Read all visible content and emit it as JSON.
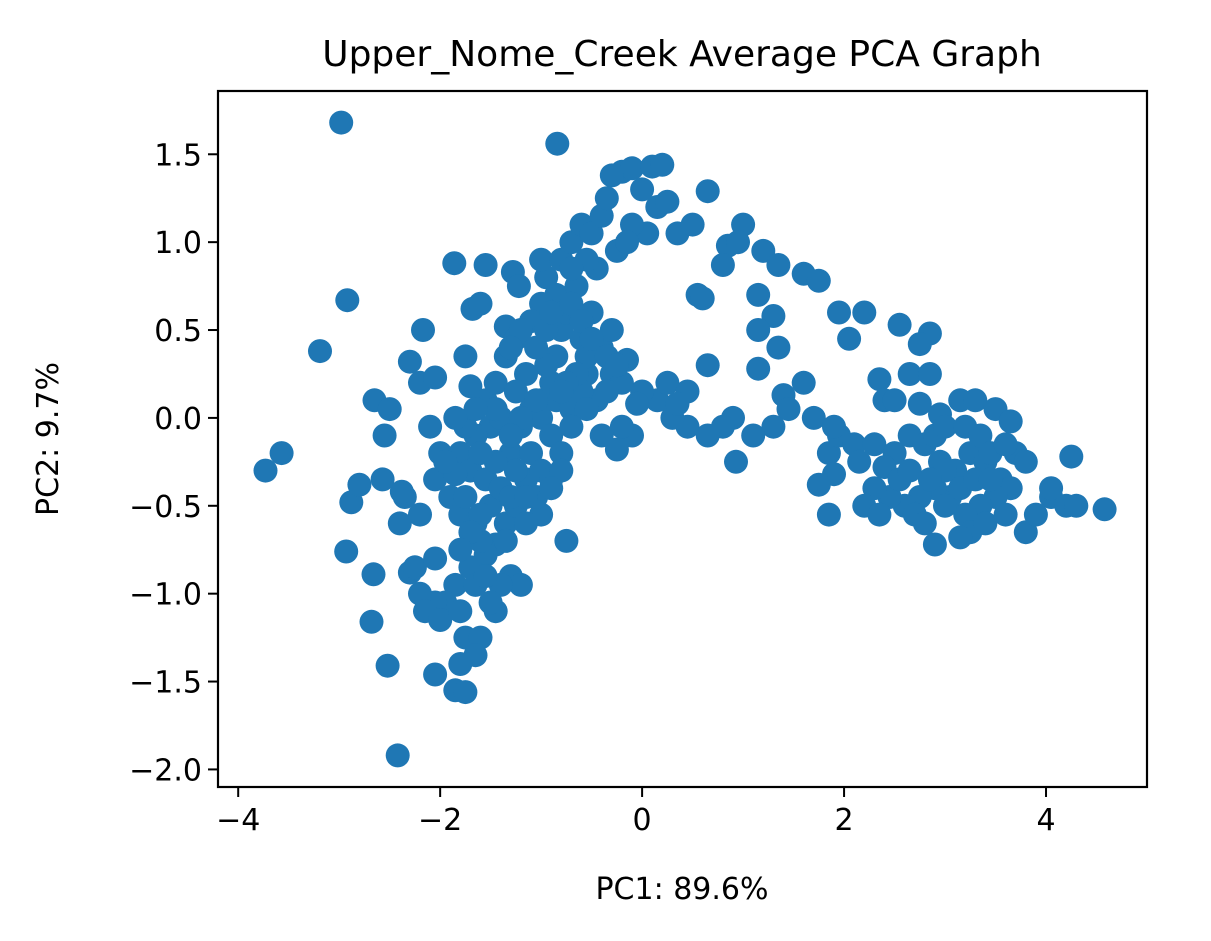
{
  "chart_data": {
    "type": "scatter",
    "title": "Upper_Nome_Creek Average PCA Graph",
    "xlabel": "PC1: 89.6%",
    "ylabel": "PC2: 9.7%",
    "xlim": [
      -4.2,
      5.0
    ],
    "ylim": [
      -2.1,
      1.86
    ],
    "xticks": [
      -4,
      -2,
      0,
      2,
      4
    ],
    "xtick_labels": [
      "−4",
      "−2",
      "0",
      "2",
      "4"
    ],
    "yticks": [
      -2.0,
      -1.5,
      -1.0,
      -0.5,
      0.0,
      0.5,
      1.0,
      1.5
    ],
    "ytick_labels": [
      "−2.0",
      "−1.5",
      "−1.0",
      "−0.5",
      "0.0",
      "0.5",
      "1.0",
      "1.5"
    ],
    "grid": false,
    "legend": "none",
    "marker_color": "#1f77b4",
    "series": [
      {
        "points": [
          [
            -2.98,
            1.68
          ],
          [
            -0.84,
            1.56
          ],
          [
            -2.92,
            0.67
          ],
          [
            -3.19,
            0.38
          ],
          [
            -3.73,
            -0.3
          ],
          [
            -3.57,
            -0.2
          ],
          [
            -1.86,
            0.88
          ],
          [
            -1.55,
            0.87
          ],
          [
            -1.28,
            0.83
          ],
          [
            -1.22,
            0.75
          ],
          [
            -1.68,
            0.62
          ],
          [
            -1.6,
            0.65
          ],
          [
            -1.35,
            0.52
          ],
          [
            -1.25,
            0.45
          ],
          [
            -2.17,
            0.5
          ],
          [
            -2.3,
            0.32
          ],
          [
            -2.2,
            0.2
          ],
          [
            -2.05,
            0.23
          ],
          [
            -2.65,
            0.1
          ],
          [
            -2.5,
            0.05
          ],
          [
            -2.1,
            -0.05
          ],
          [
            -2.55,
            -0.1
          ],
          [
            -2.0,
            -0.2
          ],
          [
            -2.05,
            -0.35
          ],
          [
            -1.75,
            0.35
          ],
          [
            -1.7,
            0.18
          ],
          [
            -1.55,
            0.1
          ],
          [
            -1.45,
            0.2
          ],
          [
            -1.35,
            0.35
          ],
          [
            -1.5,
            -0.05
          ],
          [
            -1.65,
            -0.1
          ],
          [
            -1.8,
            -0.2
          ],
          [
            -1.7,
            -0.3
          ],
          [
            -1.55,
            -0.35
          ],
          [
            -1.9,
            -0.45
          ],
          [
            -1.8,
            -0.55
          ],
          [
            -1.65,
            -0.6
          ],
          [
            -1.5,
            -0.5
          ],
          [
            -1.4,
            -0.4
          ],
          [
            -1.3,
            -0.2
          ],
          [
            -1.2,
            -0.05
          ],
          [
            -1.1,
            0.05
          ],
          [
            -1.0,
            0.1
          ],
          [
            -0.9,
            0.2
          ],
          [
            -0.85,
            0.35
          ],
          [
            -0.8,
            0.5
          ],
          [
            -0.75,
            0.6
          ],
          [
            -0.85,
            0.7
          ],
          [
            -0.95,
            0.8
          ],
          [
            -1.0,
            0.9
          ],
          [
            -0.8,
            0.9
          ],
          [
            -0.7,
            1.0
          ],
          [
            -0.6,
            1.1
          ],
          [
            -0.5,
            1.05
          ],
          [
            -0.4,
            1.15
          ],
          [
            -0.35,
            1.25
          ],
          [
            -0.2,
            1.4
          ],
          [
            -0.1,
            1.42
          ],
          [
            0.1,
            1.43
          ],
          [
            0.2,
            1.44
          ],
          [
            -0.3,
            1.38
          ],
          [
            0.0,
            1.3
          ],
          [
            0.15,
            1.2
          ],
          [
            0.25,
            1.23
          ],
          [
            0.35,
            1.05
          ],
          [
            0.05,
            1.05
          ],
          [
            -0.1,
            1.1
          ],
          [
            0.65,
            1.29
          ],
          [
            0.85,
            0.98
          ],
          [
            1.0,
            1.1
          ],
          [
            1.2,
            0.95
          ],
          [
            0.95,
            1.0
          ],
          [
            0.5,
            1.1
          ],
          [
            0.8,
            0.87
          ],
          [
            1.35,
            0.87
          ],
          [
            1.6,
            0.82
          ],
          [
            1.75,
            0.78
          ],
          [
            1.15,
            0.7
          ],
          [
            1.3,
            0.58
          ],
          [
            1.15,
            0.5
          ],
          [
            1.35,
            0.4
          ],
          [
            1.15,
            0.28
          ],
          [
            0.55,
            0.7
          ],
          [
            0.6,
            0.68
          ],
          [
            0.65,
            0.3
          ],
          [
            1.95,
            0.6
          ],
          [
            2.05,
            0.45
          ],
          [
            2.2,
            0.6
          ],
          [
            2.55,
            0.53
          ],
          [
            2.85,
            0.48
          ],
          [
            2.75,
            0.42
          ],
          [
            2.65,
            0.25
          ],
          [
            2.85,
            0.25
          ],
          [
            2.35,
            0.22
          ],
          [
            2.4,
            0.1
          ],
          [
            2.5,
            0.1
          ],
          [
            2.75,
            0.08
          ],
          [
            2.95,
            0.02
          ],
          [
            3.15,
            0.1
          ],
          [
            3.3,
            0.1
          ],
          [
            3.5,
            0.05
          ],
          [
            3.65,
            -0.02
          ],
          [
            1.6,
            0.2
          ],
          [
            1.4,
            0.13
          ],
          [
            1.45,
            0.05
          ],
          [
            1.7,
            0.0
          ],
          [
            1.3,
            -0.05
          ],
          [
            1.1,
            -0.1
          ],
          [
            0.9,
            0.0
          ],
          [
            0.8,
            -0.05
          ],
          [
            0.65,
            -0.1
          ],
          [
            0.45,
            -0.05
          ],
          [
            0.3,
            0.0
          ],
          [
            0.15,
            0.1
          ],
          [
            0.0,
            0.15
          ],
          [
            0.25,
            0.2
          ],
          [
            0.45,
            0.15
          ],
          [
            0.35,
            0.08
          ],
          [
            -0.1,
            -0.1
          ],
          [
            -0.2,
            -0.05
          ],
          [
            -0.25,
            -0.18
          ],
          [
            -0.4,
            -0.1
          ],
          [
            -0.45,
            0.1
          ],
          [
            -0.3,
            0.25
          ],
          [
            -0.15,
            0.33
          ],
          [
            -0.2,
            0.2
          ],
          [
            -0.05,
            0.08
          ],
          [
            -0.55,
            0.25
          ],
          [
            -0.6,
            0.45
          ],
          [
            -0.4,
            0.4
          ],
          [
            -0.5,
            0.6
          ],
          [
            -0.3,
            0.5
          ],
          [
            -0.45,
            0.85
          ],
          [
            -0.55,
            0.9
          ],
          [
            -0.25,
            0.95
          ],
          [
            -0.15,
            1.0
          ],
          [
            -0.65,
            0.75
          ],
          [
            -0.7,
            0.85
          ],
          [
            1.85,
            -0.2
          ],
          [
            1.9,
            -0.32
          ],
          [
            1.95,
            -0.1
          ],
          [
            2.1,
            -0.15
          ],
          [
            2.3,
            -0.15
          ],
          [
            2.5,
            -0.2
          ],
          [
            2.65,
            -0.1
          ],
          [
            2.8,
            -0.15
          ],
          [
            2.95,
            -0.25
          ],
          [
            3.1,
            -0.3
          ],
          [
            3.25,
            -0.2
          ],
          [
            3.4,
            -0.25
          ],
          [
            3.55,
            -0.35
          ],
          [
            3.7,
            -0.2
          ],
          [
            3.8,
            -0.25
          ],
          [
            3.65,
            -0.4
          ],
          [
            3.5,
            -0.45
          ],
          [
            3.35,
            -0.5
          ],
          [
            3.2,
            -0.55
          ],
          [
            3.05,
            -0.45
          ],
          [
            2.9,
            -0.4
          ],
          [
            2.75,
            -0.45
          ],
          [
            2.6,
            -0.5
          ],
          [
            2.45,
            -0.45
          ],
          [
            2.3,
            -0.4
          ],
          [
            2.2,
            -0.5
          ],
          [
            2.35,
            -0.55
          ],
          [
            2.7,
            -0.55
          ],
          [
            2.8,
            -0.6
          ],
          [
            3.0,
            -0.5
          ],
          [
            3.25,
            -0.65
          ],
          [
            3.4,
            -0.6
          ],
          [
            3.6,
            -0.55
          ],
          [
            3.8,
            -0.65
          ],
          [
            3.9,
            -0.55
          ],
          [
            4.05,
            -0.45
          ],
          [
            4.05,
            -0.4
          ],
          [
            4.2,
            -0.5
          ],
          [
            4.25,
            -0.22
          ],
          [
            4.3,
            -0.5
          ],
          [
            4.58,
            -0.52
          ],
          [
            2.9,
            -0.72
          ],
          [
            3.15,
            -0.68
          ],
          [
            1.85,
            -0.55
          ],
          [
            1.75,
            -0.38
          ],
          [
            0.93,
            -0.25
          ],
          [
            -0.75,
            -0.7
          ],
          [
            -1.0,
            -0.55
          ],
          [
            -1.05,
            -0.45
          ],
          [
            -1.15,
            -0.35
          ],
          [
            -1.25,
            -0.3
          ],
          [
            -1.35,
            -0.6
          ],
          [
            -1.45,
            -0.72
          ],
          [
            -1.3,
            -0.9
          ],
          [
            -1.2,
            -0.95
          ],
          [
            -1.4,
            -0.95
          ],
          [
            -1.55,
            -0.78
          ],
          [
            -1.7,
            -0.85
          ],
          [
            -1.85,
            -0.95
          ],
          [
            -1.95,
            -1.05
          ],
          [
            -2.05,
            -1.05
          ],
          [
            -2.2,
            -1.0
          ],
          [
            -2.15,
            -1.1
          ],
          [
            -2.0,
            -1.15
          ],
          [
            -1.8,
            -1.1
          ],
          [
            -1.75,
            -1.25
          ],
          [
            -1.6,
            -1.25
          ],
          [
            -1.45,
            -1.1
          ],
          [
            -1.5,
            -1.05
          ],
          [
            -1.65,
            -1.35
          ],
          [
            -1.8,
            -1.4
          ],
          [
            -1.85,
            -1.55
          ],
          [
            -1.75,
            -1.56
          ],
          [
            -2.05,
            -1.46
          ],
          [
            -2.52,
            -1.41
          ],
          [
            -2.68,
            -1.16
          ],
          [
            -2.66,
            -0.89
          ],
          [
            -2.93,
            -0.76
          ],
          [
            -2.3,
            -0.88
          ],
          [
            -2.25,
            -0.85
          ],
          [
            -2.05,
            -0.8
          ],
          [
            -2.4,
            -0.6
          ],
          [
            -2.35,
            -0.45
          ],
          [
            -2.2,
            -0.55
          ],
          [
            -2.88,
            -0.48
          ],
          [
            -2.8,
            -0.38
          ],
          [
            -2.57,
            -0.35
          ],
          [
            -2.38,
            -0.42
          ],
          [
            -2.42,
            -1.92
          ],
          [
            -1.0,
            0.0
          ],
          [
            -0.9,
            -0.1
          ],
          [
            -0.8,
            -0.2
          ],
          [
            -1.1,
            -0.2
          ],
          [
            -0.95,
            0.3
          ],
          [
            -1.05,
            0.4
          ],
          [
            -1.15,
            0.25
          ],
          [
            -1.25,
            0.15
          ],
          [
            -1.4,
            0.0
          ],
          [
            -1.45,
            -0.25
          ],
          [
            -1.6,
            -0.2
          ],
          [
            -1.75,
            -0.05
          ],
          [
            -1.85,
            -0.32
          ],
          [
            -1.95,
            -0.25
          ],
          [
            -1.75,
            -0.45
          ],
          [
            -1.6,
            -0.55
          ],
          [
            -1.25,
            -0.5
          ],
          [
            -1.15,
            -0.6
          ],
          [
            -1.35,
            -0.7
          ],
          [
            -1.6,
            -0.7
          ],
          [
            -1.7,
            -0.65
          ],
          [
            -1.8,
            -0.75
          ],
          [
            -1.65,
            -0.95
          ],
          [
            -1.55,
            -0.9
          ],
          [
            -1.3,
            -0.45
          ],
          [
            -1.0,
            -0.3
          ],
          [
            -0.9,
            -0.35
          ],
          [
            -0.85,
            0.1
          ],
          [
            -0.7,
            0.05
          ],
          [
            -0.6,
            0.15
          ],
          [
            -0.55,
            0.35
          ],
          [
            -0.65,
            0.25
          ],
          [
            -0.75,
            0.2
          ],
          [
            -0.8,
            0.15
          ],
          [
            -1.0,
            0.65
          ],
          [
            -1.1,
            0.55
          ],
          [
            -1.2,
            0.5
          ],
          [
            -1.3,
            0.4
          ],
          [
            -0.95,
            0.5
          ],
          [
            -0.9,
            0.6
          ],
          [
            -0.7,
            0.65
          ],
          [
            -0.6,
            0.55
          ],
          [
            -0.5,
            0.45
          ],
          [
            -0.35,
            0.35
          ],
          [
            -0.25,
            0.3
          ],
          [
            -0.35,
            0.15
          ],
          [
            -0.55,
            0.05
          ],
          [
            -0.7,
            -0.05
          ],
          [
            -0.8,
            -0.3
          ],
          [
            -0.9,
            -0.4
          ],
          [
            -1.15,
            -0.45
          ],
          [
            -1.05,
            0.1
          ],
          [
            -1.2,
            0.0
          ],
          [
            -1.3,
            -0.1
          ],
          [
            -1.45,
            0.05
          ],
          [
            -1.65,
            0.05
          ],
          [
            -1.85,
            0.0
          ],
          [
            1.9,
            -0.05
          ],
          [
            2.15,
            -0.25
          ],
          [
            2.4,
            -0.28
          ],
          [
            2.55,
            -0.35
          ],
          [
            2.9,
            -0.1
          ],
          [
            3.0,
            -0.05
          ],
          [
            3.2,
            -0.05
          ],
          [
            3.35,
            -0.1
          ],
          [
            3.45,
            -0.2
          ],
          [
            3.6,
            -0.15
          ],
          [
            3.15,
            -0.4
          ],
          [
            3.3,
            -0.35
          ],
          [
            3.45,
            -0.35
          ],
          [
            3.0,
            -0.3
          ],
          [
            2.85,
            -0.35
          ],
          [
            2.65,
            -0.3
          ]
        ]
      }
    ]
  }
}
